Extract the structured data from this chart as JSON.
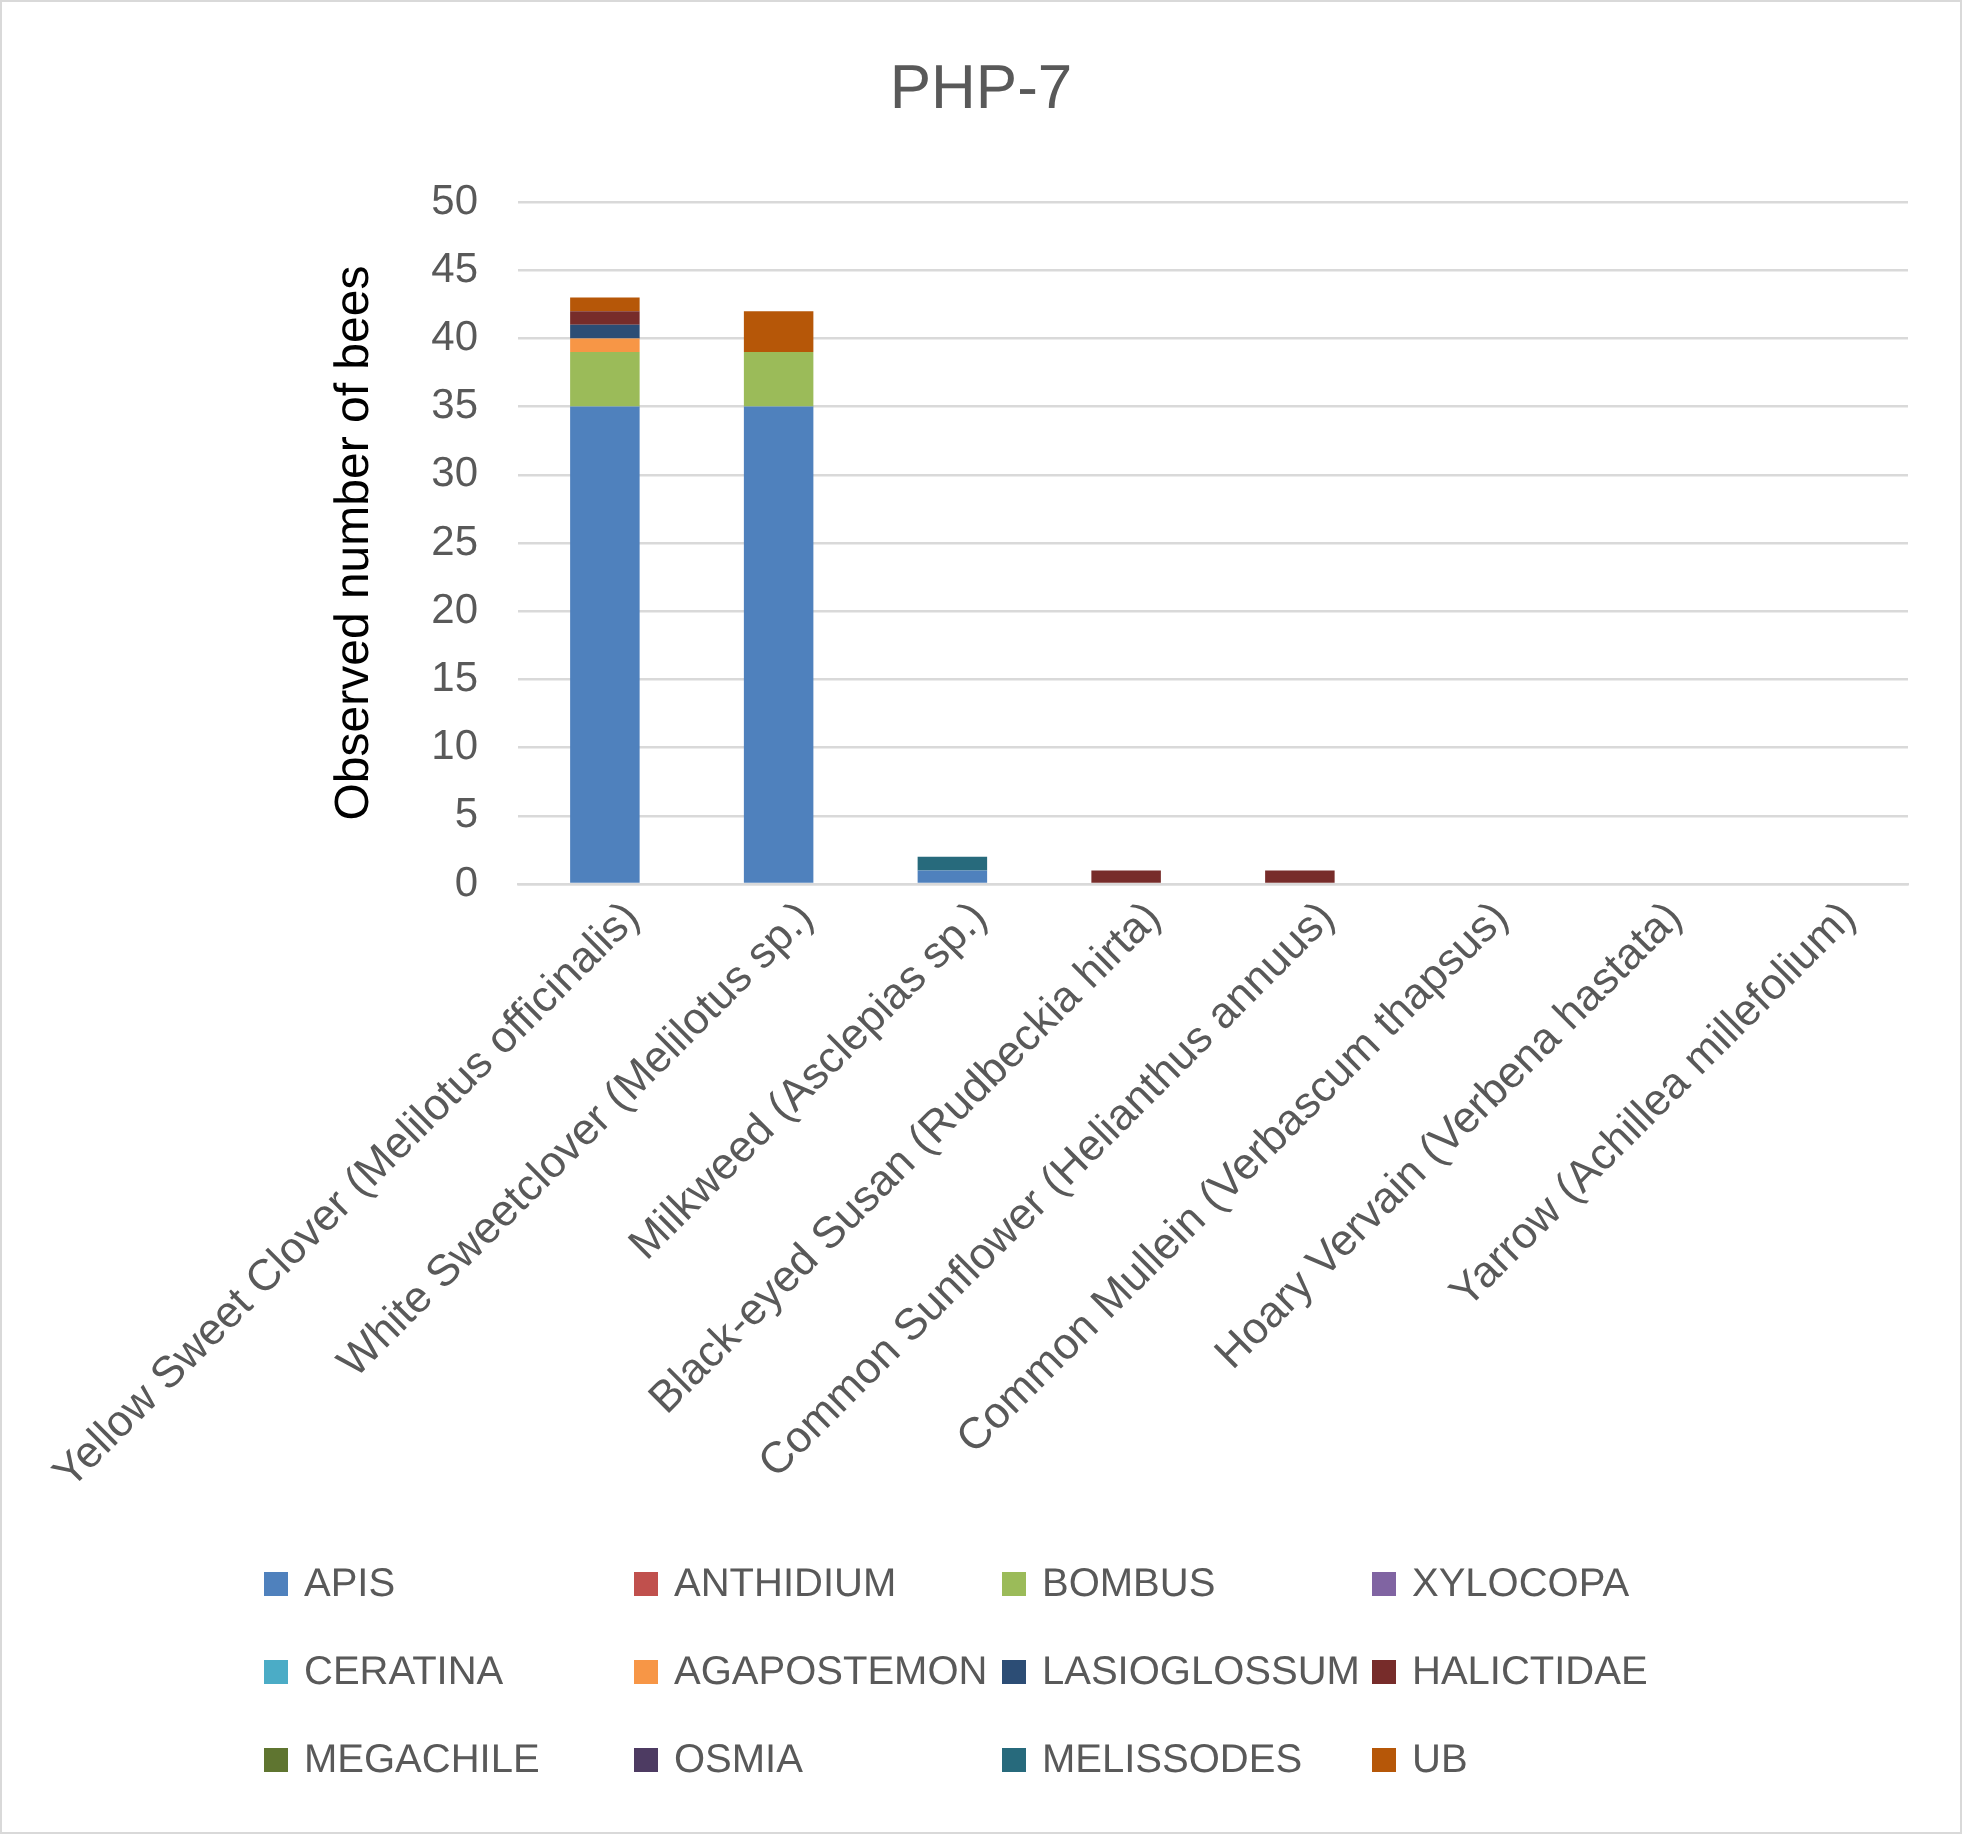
{
  "chart_data": {
    "type": "bar",
    "title": "PHP-7",
    "ylabel": "Observed number of bees",
    "categories": [
      "Yellow Sweet Clover (Melilotus officinalis)",
      "White Sweetclover (Melilotus sp.)",
      "Milkweed (Asclepias sp.)",
      "Black-eyed Susan (Rudbeckia hirta)",
      "Common Sunflower (Helianthus annuus)",
      "Common Mullein (Verbascum thapsus)",
      "Hoary Vervain (Verbena hastata)",
      "Yarrow (Achillea millefolium)"
    ],
    "series": [
      {
        "name": "APIS",
        "color": "#4f81bd",
        "values": [
          35,
          35,
          1,
          0,
          0,
          0,
          0,
          0
        ]
      },
      {
        "name": "ANTHIDIUM",
        "color": "#c0504d",
        "values": [
          0,
          0,
          0,
          0,
          0,
          0,
          0,
          0
        ]
      },
      {
        "name": "BOMBUS",
        "color": "#9bbb59",
        "values": [
          4,
          4,
          0,
          0,
          0,
          0,
          0,
          0
        ]
      },
      {
        "name": "XYLOCOPA",
        "color": "#8064a2",
        "values": [
          0,
          0,
          0,
          0,
          0,
          0,
          0,
          0
        ]
      },
      {
        "name": "CERATINA",
        "color": "#4bacc6",
        "values": [
          0,
          0,
          0,
          0,
          0,
          0,
          0,
          0
        ]
      },
      {
        "name": "AGAPOSTEMON",
        "color": "#f79646",
        "values": [
          1,
          0,
          0,
          0,
          0,
          0,
          0,
          0
        ]
      },
      {
        "name": "LASIOGLOSSUM",
        "color": "#2c4d75",
        "values": [
          1,
          0,
          0,
          0,
          0,
          0,
          0,
          0
        ]
      },
      {
        "name": "HALICTIDAE",
        "color": "#772c2a",
        "values": [
          1,
          0,
          0,
          1,
          1,
          0,
          0,
          0
        ]
      },
      {
        "name": "MEGACHILE",
        "color": "#5f7530",
        "values": [
          0,
          0,
          0,
          0,
          0,
          0,
          0,
          0
        ]
      },
      {
        "name": "OSMIA",
        "color": "#4d3b62",
        "values": [
          0,
          0,
          0,
          0,
          0,
          0,
          0,
          0
        ]
      },
      {
        "name": "MELISSODES",
        "color": "#276a7c",
        "values": [
          0,
          0,
          1,
          0,
          0,
          0,
          0,
          0
        ]
      },
      {
        "name": "UB",
        "color": "#b65708",
        "values": [
          1,
          3,
          0,
          0,
          0,
          0,
          0,
          0
        ]
      }
    ],
    "stacked": true,
    "ylim": [
      0,
      50
    ],
    "yticks": [
      0,
      5,
      10,
      15,
      20,
      25,
      30,
      35,
      40,
      45,
      50
    ],
    "grid": "y",
    "legend": "bottom"
  }
}
